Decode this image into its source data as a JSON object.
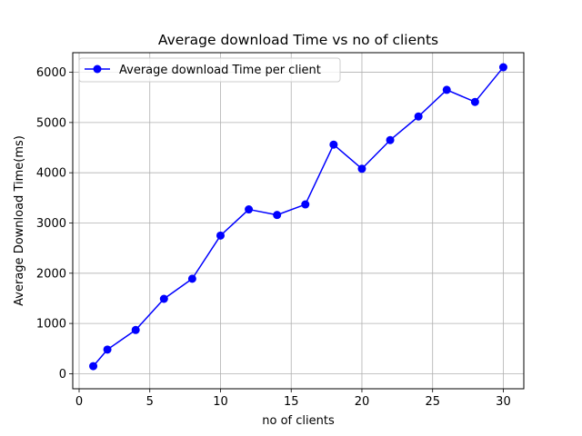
{
  "chart_data": {
    "type": "line",
    "title": "Average download Time vs no of clients",
    "xlabel": "no of clients",
    "ylabel": "Average Download Time(ms)",
    "xlim": [
      -0.45,
      31.45
    ],
    "ylim": [
      -300,
      6390
    ],
    "x_ticks": [
      0,
      5,
      10,
      15,
      20,
      25,
      30
    ],
    "y_ticks": [
      0,
      1000,
      2000,
      3000,
      4000,
      5000,
      6000
    ],
    "grid": true,
    "legend_position": "top-left",
    "series": [
      {
        "name": "Average download Time per client",
        "color": "#0000ff",
        "marker": "circle",
        "x": [
          1,
          2,
          4,
          6,
          8,
          10,
          12,
          14,
          16,
          18,
          20,
          22,
          24,
          26,
          28,
          30
        ],
        "y": [
          150,
          480,
          870,
          1490,
          1890,
          2750,
          3270,
          3160,
          3370,
          4560,
          4080,
          4650,
          5120,
          5650,
          5410,
          6100
        ]
      }
    ]
  }
}
